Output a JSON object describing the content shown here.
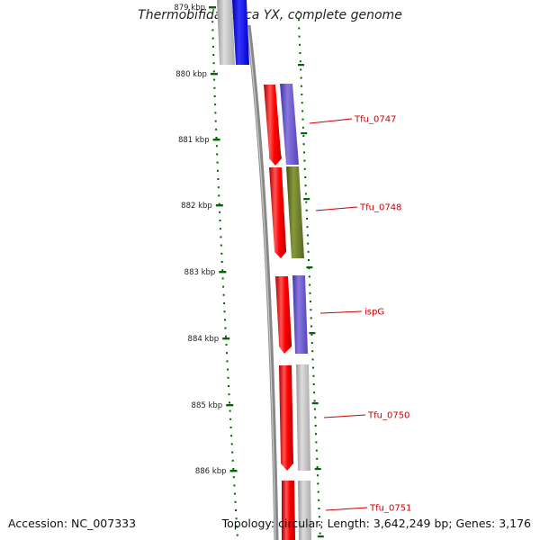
{
  "title": "Thermobifida fusca YX, complete genome",
  "accession": "Accession: NC_007333",
  "topology": "Topology: circular; Length: 3,642,249 bp; Genes: 3,176",
  "ticks": [
    {
      "label": "879 kbp"
    },
    {
      "label": "880 kbp"
    },
    {
      "label": "881 kbp"
    },
    {
      "label": "882 kbp"
    },
    {
      "label": "883 kbp"
    },
    {
      "label": "884 kbp"
    },
    {
      "label": "885 kbp"
    },
    {
      "label": "886 kbp"
    }
  ],
  "genes": [
    {
      "name": "Tfu_0747"
    },
    {
      "name": "Tfu_0748"
    },
    {
      "name": "ispG"
    },
    {
      "name": "Tfu_0750"
    },
    {
      "name": "Tfu_0751"
    }
  ],
  "colors": {
    "forward_strand": "#ff0000",
    "cog_purple": "#6655cc",
    "cog_olive": "#667722",
    "cog_grey": "#bbbbbb",
    "cog_blue": "#0000ee",
    "tick_green": "#006600",
    "label_red": "#cc0000",
    "backbone": "#888888"
  }
}
